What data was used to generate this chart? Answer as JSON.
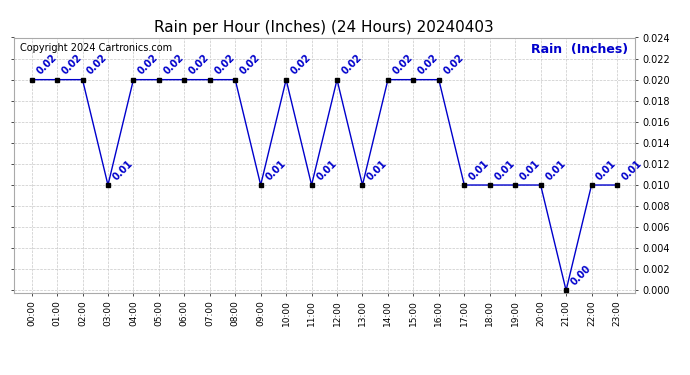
{
  "title": "Rain per Hour (Inches) (24 Hours) 20240403",
  "copyright": "Copyright 2024 Cartronics.com",
  "legend_label": "Rain  (Inches)",
  "hours": [
    "00:00",
    "01:00",
    "02:00",
    "03:00",
    "04:00",
    "05:00",
    "06:00",
    "07:00",
    "08:00",
    "09:00",
    "10:00",
    "11:00",
    "12:00",
    "13:00",
    "14:00",
    "15:00",
    "16:00",
    "17:00",
    "18:00",
    "19:00",
    "20:00",
    "21:00",
    "22:00",
    "23:00"
  ],
  "values": [
    0.02,
    0.02,
    0.02,
    0.01,
    0.02,
    0.02,
    0.02,
    0.02,
    0.02,
    0.01,
    0.02,
    0.01,
    0.02,
    0.01,
    0.02,
    0.02,
    0.02,
    0.01,
    0.01,
    0.01,
    0.01,
    0.0,
    0.01,
    0.01
  ],
  "line_color": "#0000cc",
  "marker_color": "#000000",
  "annotation_color": "#0000cc",
  "grid_color": "#c8c8c8",
  "background_color": "#ffffff",
  "ylim": [
    -0.0002,
    0.024
  ],
  "yticks": [
    0.0,
    0.002,
    0.004,
    0.006,
    0.008,
    0.01,
    0.012,
    0.014,
    0.016,
    0.018,
    0.02,
    0.022,
    0.024
  ],
  "title_fontsize": 11,
  "annotation_fontsize": 7,
  "copyright_fontsize": 7,
  "legend_fontsize": 9,
  "fig_width": 6.9,
  "fig_height": 3.75,
  "dpi": 100
}
